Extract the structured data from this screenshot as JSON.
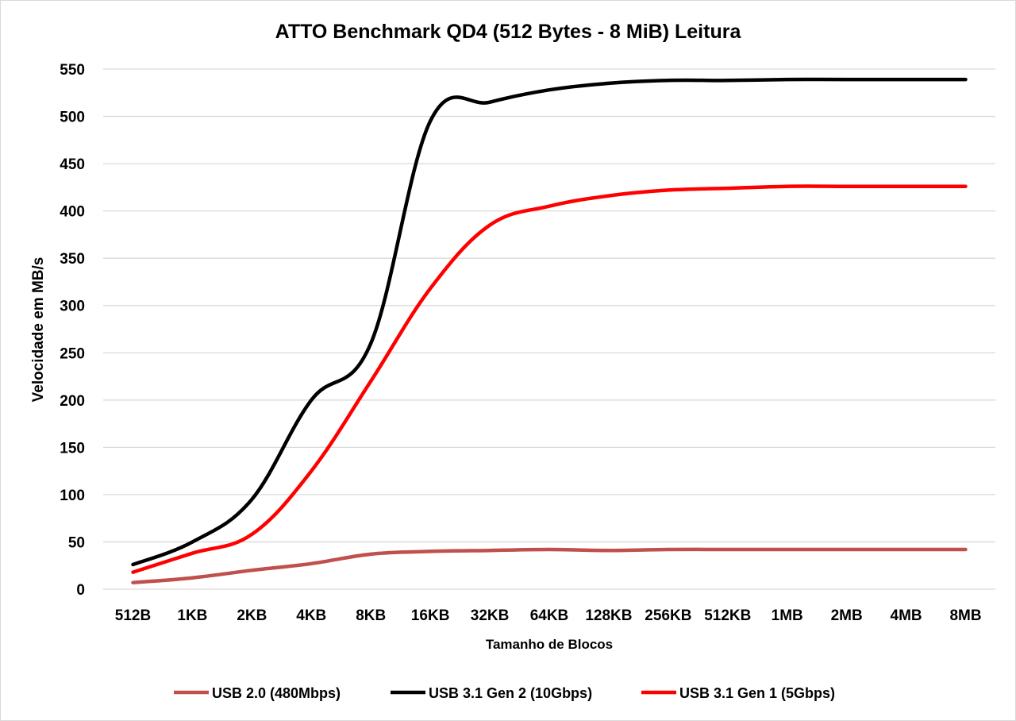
{
  "chart_data": {
    "type": "line",
    "title": "ATTO Benchmark QD4 (512 Bytes - 8 MiB) Leitura",
    "xlabel": "Tamanho de Blocos",
    "ylabel": "Velocidade em MB/s",
    "ylim": [
      0,
      550
    ],
    "yticks": [
      0,
      50,
      100,
      150,
      200,
      250,
      300,
      350,
      400,
      450,
      500,
      550
    ],
    "categories": [
      "512B",
      "1KB",
      "2KB",
      "4KB",
      "8KB",
      "16KB",
      "32KB",
      "64KB",
      "128KB",
      "256KB",
      "512KB",
      "1MB",
      "2MB",
      "4MB",
      "8MB"
    ],
    "grid": true,
    "legend_position": "bottom",
    "series": [
      {
        "name": "USB 2.0 (480Mbps)",
        "color": "#c0504d",
        "values": [
          7,
          12,
          20,
          27,
          37,
          40,
          41,
          42,
          41,
          42,
          42,
          42,
          42,
          42,
          42
        ]
      },
      {
        "name": "USB 3.1 Gen 2 (10Gbps)",
        "color": "#000000",
        "values": [
          26,
          50,
          95,
          200,
          260,
          495,
          515,
          528,
          535,
          538,
          538,
          539,
          539,
          539,
          539
        ]
      },
      {
        "name": "USB 3.1 Gen 1 (5Gbps)",
        "color": "#ff0000",
        "values": [
          18,
          38,
          58,
          125,
          220,
          318,
          385,
          405,
          416,
          422,
          424,
          426,
          426,
          426,
          426
        ]
      }
    ]
  }
}
